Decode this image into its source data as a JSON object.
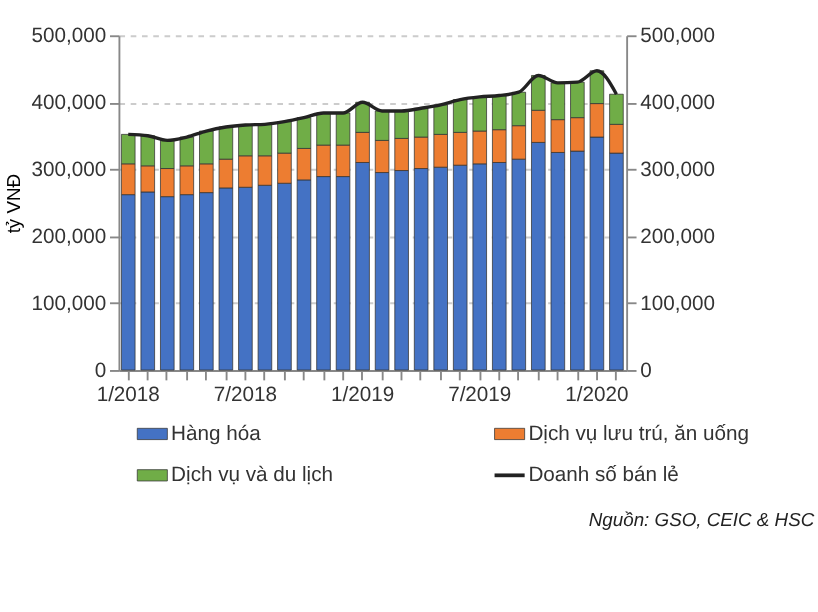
{
  "chart_data": {
    "type": "bar",
    "stacked": true,
    "categories": [
      "1/2018",
      null,
      null,
      null,
      null,
      null,
      "7/2018",
      null,
      null,
      null,
      null,
      null,
      "1/2019",
      null,
      null,
      null,
      null,
      null,
      "7/2019",
      null,
      null,
      null,
      null,
      null,
      "1/2020",
      null
    ],
    "series": [
      {
        "name": "Hàng hóa",
        "color": "#4472c4",
        "values": [
          262000,
          266000,
          259000,
          262000,
          265000,
          272000,
          273000,
          276000,
          279000,
          284000,
          289000,
          289000,
          310000,
          295000,
          298000,
          301000,
          303000,
          306000,
          308000,
          310000,
          315000,
          340000,
          325000,
          327000,
          348000,
          324000
        ]
      },
      {
        "name": "Dịch vụ lưu trú, ăn uống",
        "color": "#ed7d31",
        "values": [
          46000,
          39000,
          42000,
          43000,
          43000,
          43000,
          47000,
          44000,
          45000,
          47000,
          47000,
          47000,
          45000,
          48000,
          48000,
          47000,
          49000,
          49000,
          49000,
          49000,
          50000,
          48000,
          49000,
          50000,
          50000,
          43000
        ]
      },
      {
        "name": "Dịch vụ và du lịch",
        "color": "#70ad47",
        "values": [
          44000,
          45000,
          42000,
          43000,
          49000,
          48000,
          46000,
          47000,
          47000,
          46000,
          48000,
          48000,
          45000,
          44000,
          41000,
          43000,
          44000,
          49000,
          51000,
          51000,
          50000,
          52000,
          55000,
          53000,
          49000,
          45000
        ]
      },
      {
        "name": "Doanh số bán lẻ",
        "type": "line",
        "axis": "y2",
        "color": "#222222",
        "values": [
          352000,
          350000,
          343000,
          348000,
          357000,
          363000,
          366000,
          367000,
          371000,
          377000,
          384000,
          384000,
          400000,
          387000,
          387000,
          391000,
          396000,
          404000,
          408000,
          410000,
          415000,
          440000,
          429000,
          430000,
          447000,
          412000
        ]
      }
    ],
    "ylabel": "tỷ VNĐ",
    "ylim": [
      0,
      500000
    ],
    "yticks": [
      0,
      {
        "value": 100000,
        "label": "100,000"
      },
      {
        "value": 200000,
        "label": "200,000"
      },
      {
        "value": 300000,
        "label": "300,000"
      },
      {
        "value": 400000,
        "label": "400,000"
      },
      {
        "value": 500000,
        "label": "500,000"
      }
    ],
    "y2lim": [
      0,
      500000
    ],
    "y2ticks": [
      0,
      {
        "value": 100000,
        "label": "100,000"
      },
      {
        "value": 200000,
        "label": "200,000"
      },
      {
        "value": 300000,
        "label": "300,000"
      },
      {
        "value": 400000,
        "label": "400,000"
      },
      {
        "value": 500000,
        "label": "500,000"
      }
    ],
    "grid": "y",
    "legend": "bottom",
    "annotations": [
      "Nguồn: GSO, CEIC & HSC"
    ]
  }
}
